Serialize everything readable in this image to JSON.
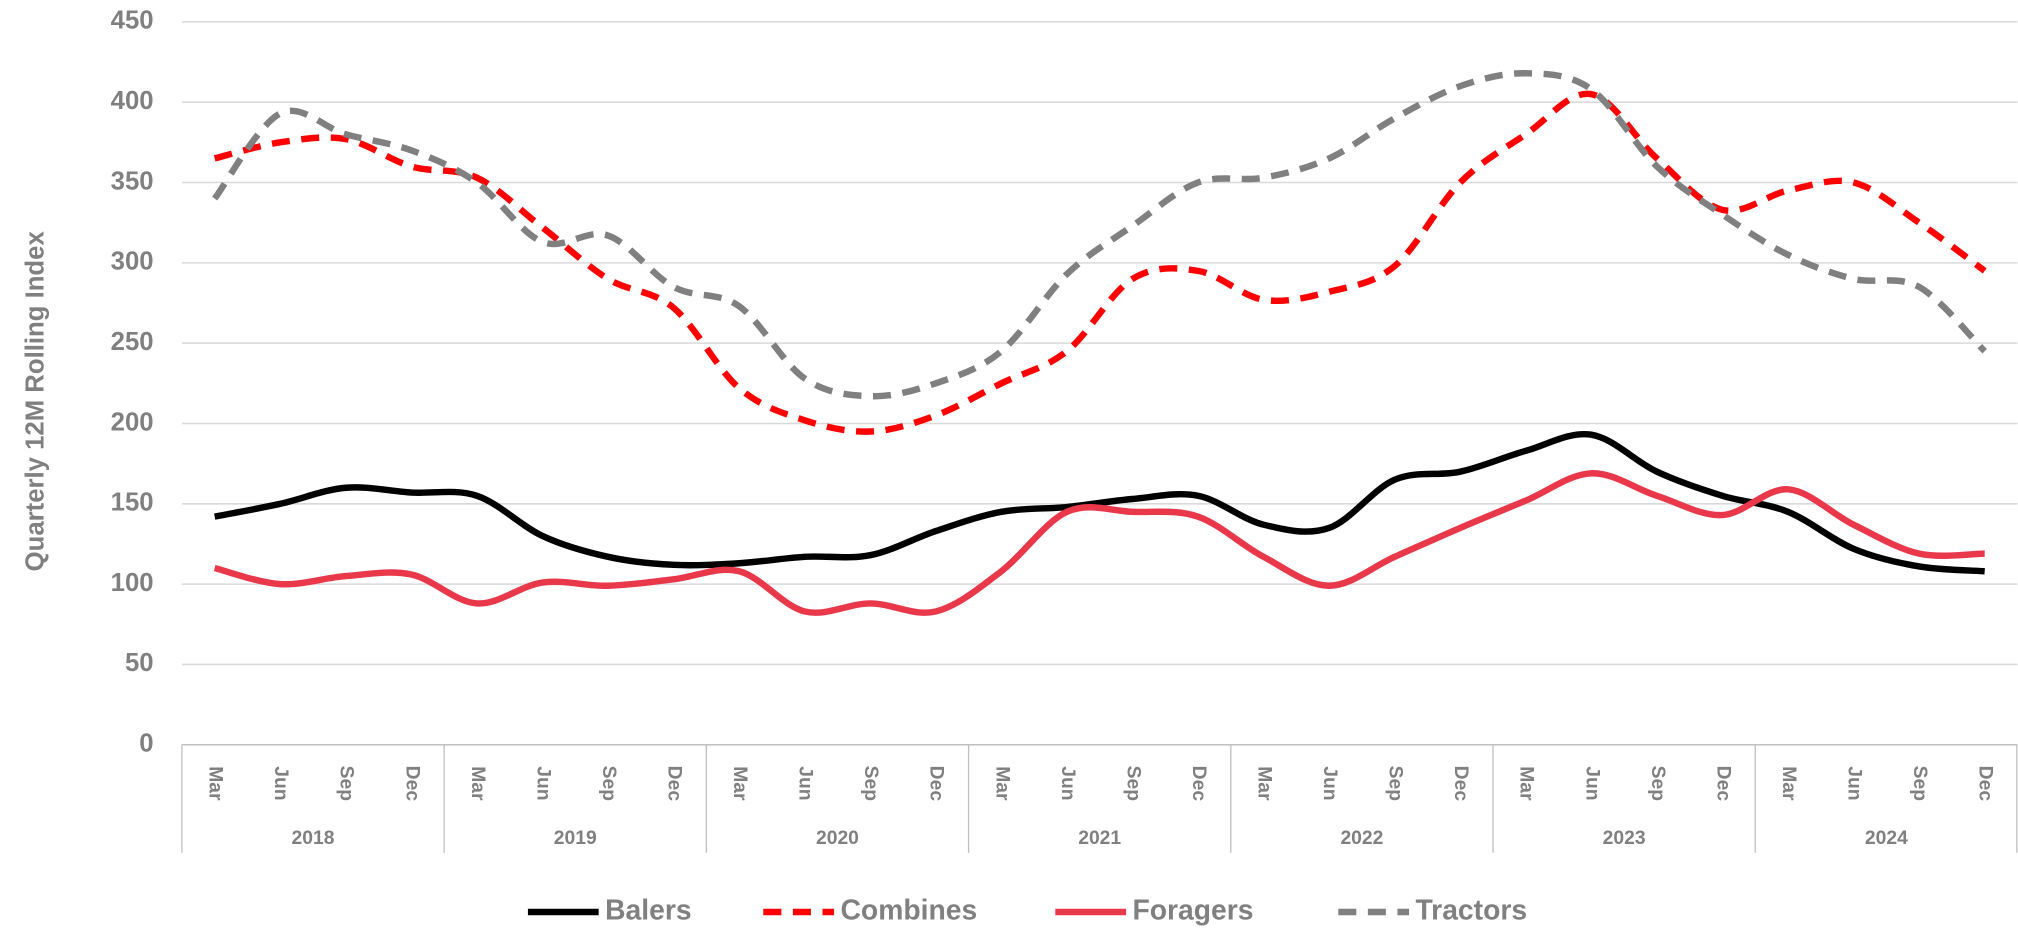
{
  "chart_data": {
    "type": "line",
    "y_label": "Quarterly 12M Rolling Index",
    "categories": [
      "Mar",
      "Jun",
      "Sep",
      "Dec",
      "Mar",
      "Jun",
      "Sep",
      "Dec",
      "Mar",
      "Jun",
      "Sep",
      "Dec",
      "Mar",
      "Jun",
      "Sep",
      "Dec",
      "Mar",
      "Jun",
      "Sep",
      "Dec",
      "Mar",
      "Jun",
      "Sep",
      "Dec",
      "Mar",
      "Jun",
      "Sep",
      "Dec"
    ],
    "years": [
      "2018",
      "2019",
      "2020",
      "2021",
      "2022",
      "2023",
      "2024"
    ],
    "ylim": [
      0,
      450
    ],
    "yticks": [
      0,
      50,
      100,
      150,
      200,
      250,
      300,
      350,
      400,
      450
    ],
    "grid": true,
    "legend": "bottom",
    "series": [
      {
        "name": "Balers",
        "color": "#000000",
        "dash": false,
        "values": [
          142,
          150,
          160,
          157,
          155,
          130,
          117,
          112,
          113,
          117,
          118,
          133,
          145,
          148,
          153,
          155,
          137,
          135,
          165,
          170,
          183,
          193,
          170,
          155,
          145,
          122,
          111,
          108
        ]
      },
      {
        "name": "Combines",
        "color": "#ff0000",
        "dash": true,
        "values": [
          365,
          375,
          377,
          360,
          353,
          322,
          290,
          272,
          222,
          202,
          195,
          205,
          225,
          245,
          290,
          295,
          277,
          282,
          298,
          350,
          380,
          405,
          365,
          333,
          345,
          350,
          325,
          295
        ]
      },
      {
        "name": "Foragers",
        "color": "#e8384a",
        "dash": false,
        "values": [
          110,
          100,
          105,
          106,
          88,
          101,
          99,
          103,
          108,
          83,
          88,
          83,
          108,
          145,
          145,
          142,
          117,
          99,
          117,
          135,
          152,
          169,
          155,
          143,
          159,
          137,
          119,
          119
        ]
      },
      {
        "name": "Tractors",
        "color": "#808080",
        "dash": true,
        "values": [
          340,
          393,
          380,
          370,
          350,
          313,
          317,
          285,
          273,
          228,
          217,
          225,
          245,
          293,
          323,
          350,
          353,
          365,
          390,
          410,
          418,
          408,
          360,
          330,
          305,
          290,
          285,
          245
        ]
      }
    ]
  }
}
